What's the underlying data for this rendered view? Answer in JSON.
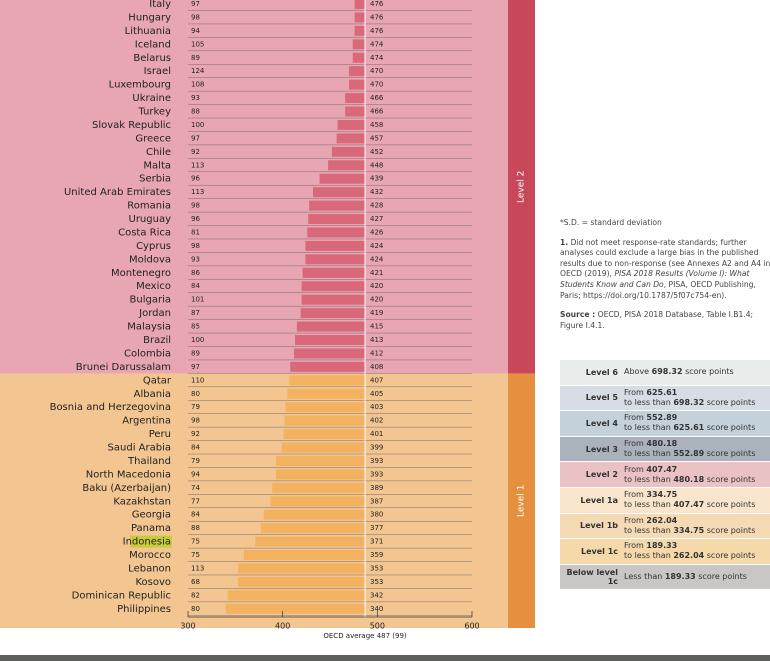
{
  "chart_data": {
    "type": "bar",
    "categories": [
      "Italy",
      "Hungary",
      "Lithuania",
      "Iceland",
      "Belarus",
      "Israel",
      "Luxembourg",
      "Ukraine",
      "Turkey",
      "Slovak Republic",
      "Greece",
      "Chile",
      "Malta",
      "Serbia",
      "United Arab Emirates",
      "Romania",
      "Uruguay",
      "Costa Rica",
      "Cyprus",
      "Moldova",
      "Montenegro",
      "Mexico",
      "Bulgaria",
      "Jordan",
      "Malaysia",
      "Brazil",
      "Colombia",
      "Brunei Darussalam",
      "Qatar",
      "Albania",
      "Bosnia and Herzegovina",
      "Argentina",
      "Peru",
      "Saudi Arabia",
      "Thailand",
      "North Macedonia",
      "Baku (Azerbaijan)",
      "Kazakhstan",
      "Georgia",
      "Panama",
      "Indonesia",
      "Morocco",
      "Lebanon",
      "Kosovo",
      "Dominican Republic",
      "Philippines"
    ],
    "values": [
      476,
      476,
      476,
      474,
      474,
      470,
      470,
      466,
      466,
      458,
      457,
      452,
      448,
      439,
      432,
      428,
      427,
      426,
      424,
      424,
      421,
      420,
      420,
      419,
      415,
      413,
      412,
      408,
      407,
      405,
      403,
      402,
      401,
      399,
      393,
      393,
      389,
      387,
      380,
      377,
      371,
      359,
      353,
      353,
      342,
      340
    ],
    "sd": [
      97,
      98,
      94,
      105,
      89,
      124,
      108,
      93,
      88,
      100,
      97,
      92,
      113,
      96,
      113,
      98,
      96,
      81,
      98,
      93,
      86,
      84,
      101,
      87,
      85,
      100,
      89,
      97,
      110,
      80,
      79,
      98,
      92,
      84,
      79,
      94,
      74,
      77,
      84,
      88,
      75,
      75,
      113,
      68,
      82,
      80
    ],
    "highlight": "Indonesia",
    "bands": [
      {
        "label": "Level 2",
        "min": 407.47,
        "background": "#e8a6b3",
        "strip": "#c8485a",
        "bar": "#d9687b"
      },
      {
        "label": "Level 1",
        "min": 189.33,
        "background": "#f3c691",
        "strip": "#e5903f",
        "bar": "#f2b25f"
      }
    ],
    "reference_value": 487,
    "reference_label": "OECD average 487 (99)",
    "xlim": [
      300,
      600
    ],
    "xticks": [
      300,
      400,
      500,
      600
    ]
  },
  "notes": {
    "sd": "*S.D. = standard deviation",
    "note1": {
      "number": "1.",
      "text": "Did not meet response-rate standards; further analyses could exclude a large bias in the published results due to non-response (see Annexes A2 and A4 in OECD (2019),",
      "italic": "PISA 2018 Results (Volume I): What Students Know and Can Do",
      "tail": ", PISA, OECD Publishing, Paris; https://doi.org/10.1787/5f07c754-en)."
    },
    "source": {
      "label": "Source :",
      "text": "OECD, PISA 2018 Database, Table I.B1.4; Figure I.4.1."
    }
  },
  "legend_table": {
    "words": {
      "above": "Above",
      "from": "From",
      "to": "to less than",
      "less": "Less than",
      "unit": "score points"
    },
    "rows": [
      {
        "level": "Level 6",
        "above": 698.32,
        "color": "#e9edec"
      },
      {
        "level": "Level 5",
        "from": 625.61,
        "to": 698.32,
        "color": "#d6dde5"
      },
      {
        "level": "Level 4",
        "from": 552.89,
        "to": 625.61,
        "color": "#c5d1da"
      },
      {
        "level": "Level 3",
        "from": 480.18,
        "to": 552.89,
        "color": "#aab2bc"
      },
      {
        "level": "Level 2",
        "from": 407.47,
        "to": 480.18,
        "color": "#eac2c4"
      },
      {
        "level": "Level 1a",
        "from": 334.75,
        "to": 407.47,
        "color": "#f8e5cc"
      },
      {
        "level": "Level 1b",
        "from": 262.04,
        "to": 334.75,
        "color": "#f5dab6"
      },
      {
        "level": "Level 1c",
        "from": 189.33,
        "to": 262.04,
        "color": "#f6d9ab"
      },
      {
        "level": "Below level 1c",
        "less": 189.33,
        "color": "#c9c6c5"
      }
    ]
  }
}
